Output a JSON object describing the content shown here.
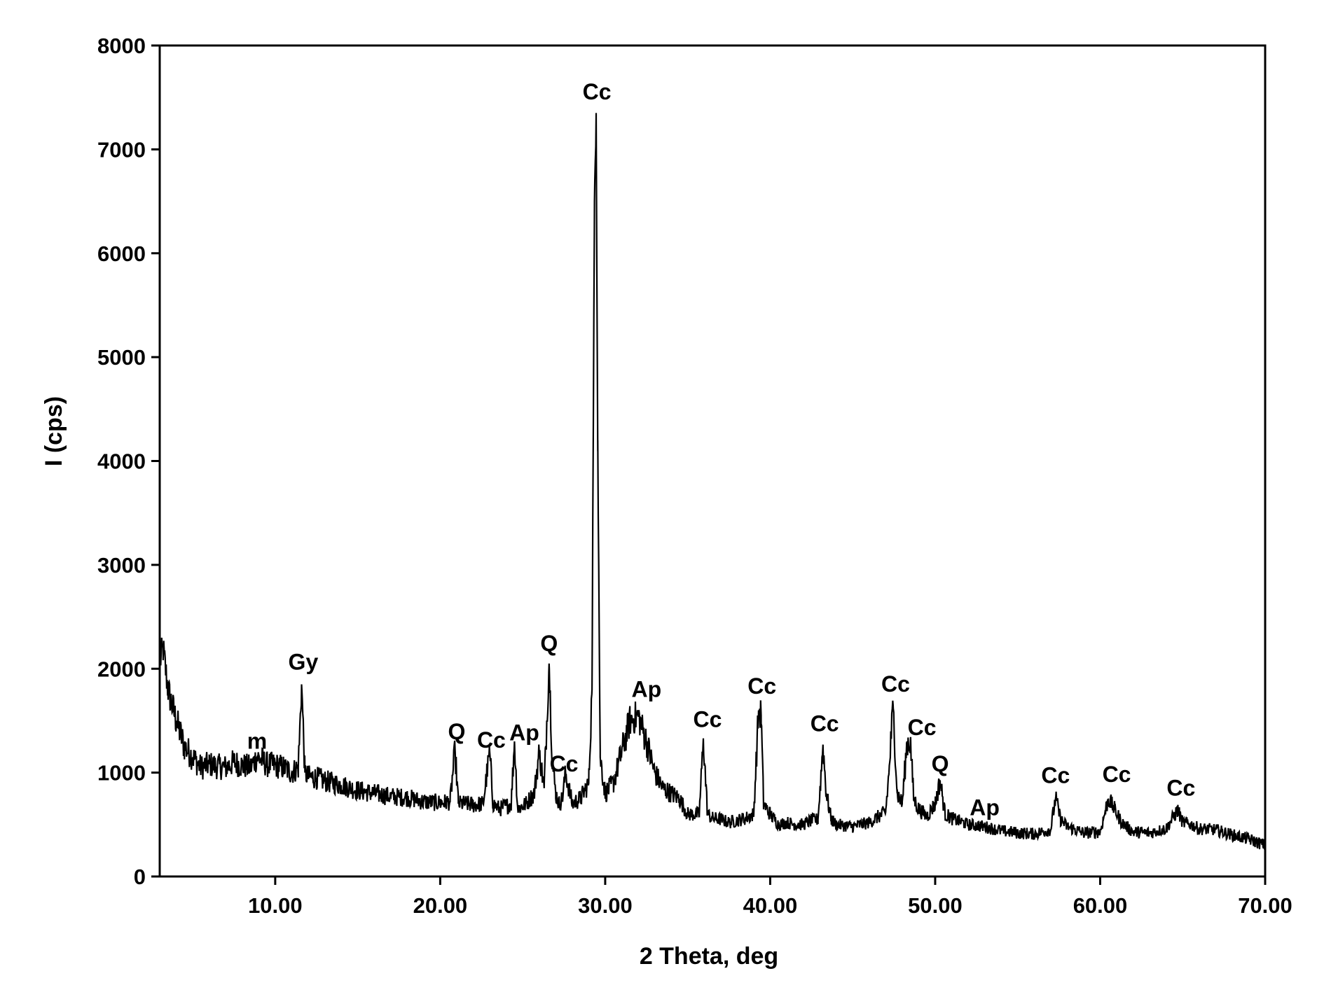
{
  "chart_data": {
    "type": "line",
    "title": "",
    "xlabel": "2 Theta, deg",
    "ylabel": "I (cps)",
    "xlim": [
      3,
      70
    ],
    "ylim": [
      0,
      8000
    ],
    "xticks": [
      10,
      20,
      30,
      40,
      50,
      60,
      70
    ],
    "xtick_labels": [
      "10.00",
      "20.00",
      "30.00",
      "40.00",
      "50.00",
      "60.00",
      "70.00"
    ],
    "yticks": [
      0,
      1000,
      2000,
      3000,
      4000,
      5000,
      6000,
      7000,
      8000
    ],
    "ytick_labels": [
      "0",
      "1000",
      "2000",
      "3000",
      "4000",
      "5000",
      "6000",
      "7000",
      "8000"
    ],
    "grid": false,
    "line_color": "#000000",
    "series": [
      {
        "x": [
          3.0,
          3.2,
          3.5,
          4.0,
          4.5,
          5.0,
          5.5,
          6.0,
          6.5,
          7.0,
          7.5,
          8.0,
          8.5,
          8.9,
          9.5,
          10.0,
          10.5,
          11.0,
          11.4,
          11.6,
          11.8,
          12.0,
          12.5,
          13.0,
          14.0,
          15.0,
          16.0,
          17.0,
          18.0,
          19.0,
          20.0,
          20.6,
          20.9,
          21.1,
          21.5,
          22.0,
          22.6,
          23.0,
          23.2,
          23.6,
          24.0,
          24.3,
          24.5,
          24.7,
          25.2,
          25.7,
          26.0,
          26.3,
          26.6,
          26.8,
          27.0,
          27.2,
          27.4,
          27.6,
          28.0,
          28.5,
          29.0,
          29.2,
          29.35,
          29.45,
          29.55,
          29.7,
          30.0,
          30.5,
          31.0,
          31.5,
          32.0,
          32.5,
          33.0,
          33.5,
          34.0,
          34.5,
          35.0,
          35.7,
          35.95,
          36.2,
          36.5,
          37.0,
          37.5,
          38.0,
          38.5,
          39.0,
          39.3,
          39.45,
          39.6,
          40.0,
          40.5,
          41.0,
          41.5,
          42.0,
          42.5,
          42.9,
          43.2,
          43.4,
          43.7,
          44.0,
          45.0,
          46.0,
          47.0,
          47.2,
          47.45,
          47.7,
          48.0,
          48.3,
          48.5,
          48.7,
          49.0,
          49.5,
          50.0,
          50.3,
          50.6,
          51.0,
          52.0,
          53.0,
          54.0,
          55.0,
          56.0,
          57.0,
          57.3,
          57.6,
          58.0,
          59.0,
          60.0,
          60.5,
          60.9,
          61.3,
          62.0,
          63.0,
          64.0,
          64.7,
          65.0,
          65.5,
          66.0,
          67.0,
          68.0,
          69.0,
          70.0
        ],
        "y": [
          2050,
          2200,
          1800,
          1500,
          1250,
          1150,
          1050,
          1080,
          1060,
          1050,
          1100,
          1070,
          1050,
          1150,
          1080,
          1070,
          1050,
          1000,
          1050,
          1850,
          1000,
          960,
          950,
          920,
          880,
          830,
          800,
          770,
          760,
          720,
          710,
          720,
          1220,
          700,
          700,
          690,
          700,
          1200,
          700,
          650,
          680,
          700,
          1300,
          650,
          700,
          800,
          1200,
          850,
          2050,
          1100,
          800,
          700,
          750,
          1000,
          700,
          750,
          900,
          1800,
          6500,
          7350,
          4200,
          1150,
          800,
          900,
          1200,
          1500,
          1550,
          1300,
          1000,
          850,
          800,
          750,
          600,
          600,
          1330,
          600,
          560,
          550,
          520,
          540,
          560,
          600,
          1600,
          1550,
          700,
          600,
          500,
          520,
          500,
          500,
          540,
          550,
          1270,
          800,
          550,
          500,
          480,
          520,
          620,
          1000,
          1650,
          800,
          700,
          1300,
          1290,
          750,
          650,
          580,
          700,
          920,
          600,
          560,
          500,
          480,
          440,
          420,
          410,
          450,
          760,
          550,
          480,
          420,
          430,
          750,
          640,
          520,
          430,
          420,
          460,
          640,
          520,
          500,
          460,
          450,
          400,
          360,
          300
        ]
      }
    ],
    "annotations": [
      {
        "text": "m",
        "x": 8.9,
        "y": 1230
      },
      {
        "text": "Gy",
        "x": 11.7,
        "y": 1990
      },
      {
        "text": "Q",
        "x": 21.0,
        "y": 1320
      },
      {
        "text": "Cc",
        "x": 23.1,
        "y": 1240
      },
      {
        "text": "Ap",
        "x": 25.1,
        "y": 1310
      },
      {
        "text": "Q",
        "x": 26.6,
        "y": 2170
      },
      {
        "text": "Cc",
        "x": 27.5,
        "y": 1010
      },
      {
        "text": "Cc",
        "x": 29.5,
        "y": 7480
      },
      {
        "text": "Ap",
        "x": 32.5,
        "y": 1730
      },
      {
        "text": "Cc",
        "x": 36.2,
        "y": 1440
      },
      {
        "text": "Cc",
        "x": 39.5,
        "y": 1760
      },
      {
        "text": "Cc",
        "x": 43.3,
        "y": 1400
      },
      {
        "text": "Cc",
        "x": 47.6,
        "y": 1780
      },
      {
        "text": "Cc",
        "x": 49.2,
        "y": 1360
      },
      {
        "text": "Q",
        "x": 50.3,
        "y": 1010
      },
      {
        "text": "Ap",
        "x": 53.0,
        "y": 590
      },
      {
        "text": "Cc",
        "x": 57.3,
        "y": 900
      },
      {
        "text": "Cc",
        "x": 61.0,
        "y": 910
      },
      {
        "text": "Cc",
        "x": 64.9,
        "y": 780
      }
    ]
  }
}
